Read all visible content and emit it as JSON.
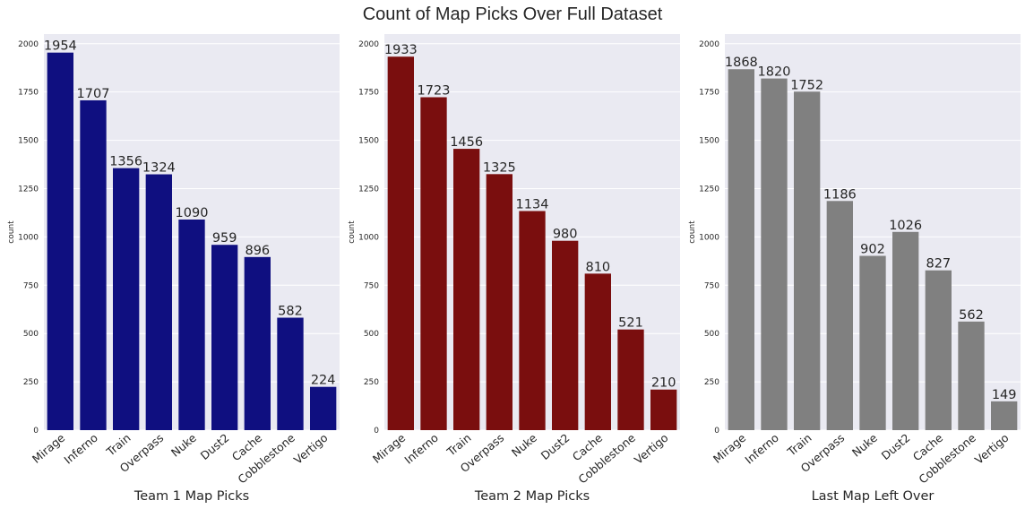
{
  "suptitle": "Count of Map Picks Over Full Dataset",
  "chart_data": [
    {
      "type": "bar",
      "categories": [
        "Mirage",
        "Inferno",
        "Train",
        "Overpass",
        "Nuke",
        "Dust2",
        "Cache",
        "Cobblestone",
        "Vertigo"
      ],
      "values": [
        1954,
        1707,
        1356,
        1324,
        1090,
        959,
        896,
        582,
        224
      ],
      "xlabel": "Team 1 Map Picks",
      "ylabel": "count",
      "ylim": [
        0,
        2050
      ],
      "yticks": [
        0,
        250,
        500,
        750,
        1000,
        1250,
        1500,
        1750,
        2000
      ],
      "color": "#0f0f80",
      "grid": true
    },
    {
      "type": "bar",
      "categories": [
        "Mirage",
        "Inferno",
        "Train",
        "Overpass",
        "Nuke",
        "Dust2",
        "Cache",
        "Cobblestone",
        "Vertigo"
      ],
      "values": [
        1933,
        1723,
        1456,
        1325,
        1134,
        980,
        810,
        521,
        210
      ],
      "xlabel": "Team 2 Map Picks",
      "ylabel": "count",
      "ylim": [
        0,
        2050
      ],
      "yticks": [
        0,
        250,
        500,
        750,
        1000,
        1250,
        1500,
        1750,
        2000
      ],
      "color": "#7a0e0e",
      "grid": true
    },
    {
      "type": "bar",
      "categories": [
        "Mirage",
        "Inferno",
        "Train",
        "Overpass",
        "Nuke",
        "Dust2",
        "Cache",
        "Cobblestone",
        "Vertigo"
      ],
      "values": [
        1868,
        1820,
        1752,
        1186,
        902,
        1026,
        827,
        562,
        149
      ],
      "xlabel": "Last Map Left Over",
      "ylabel": "count",
      "ylim": [
        0,
        2050
      ],
      "yticks": [
        0,
        250,
        500,
        750,
        1000,
        1250,
        1500,
        1750,
        2000
      ],
      "color": "#808080",
      "grid": true
    }
  ]
}
